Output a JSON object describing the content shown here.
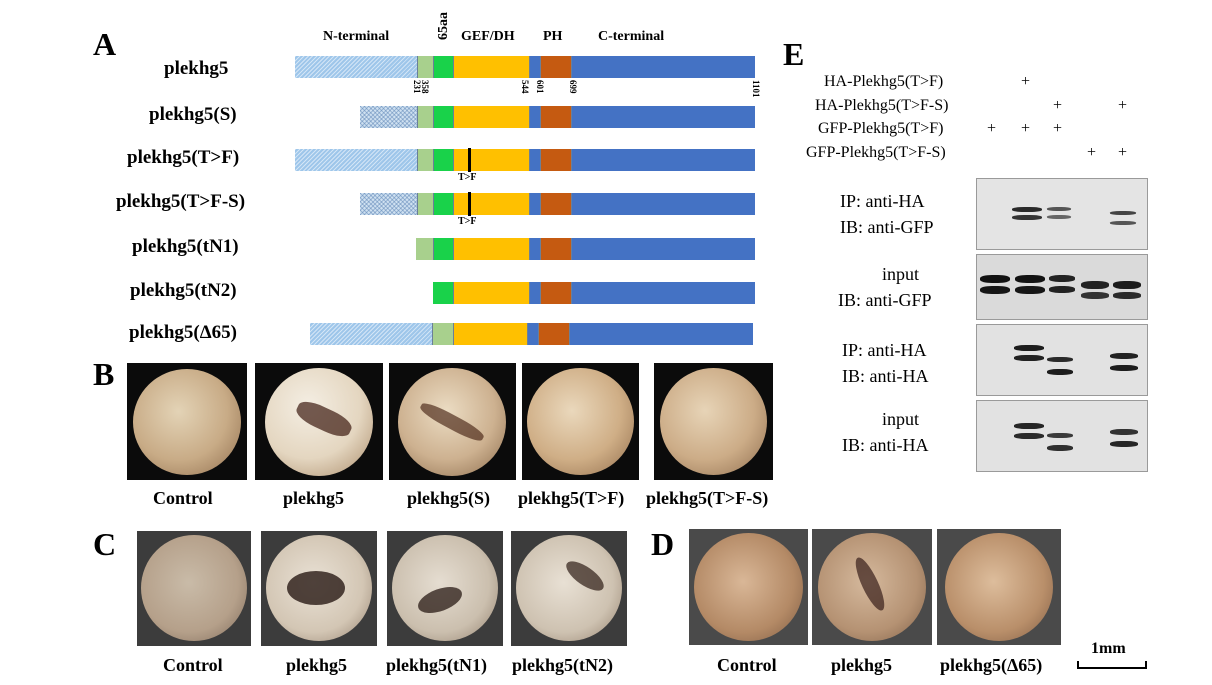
{
  "panels": {
    "A": "A",
    "B": "B",
    "C": "C",
    "D": "D",
    "E": "E"
  },
  "panel_a": {
    "domain_headers": {
      "n_terminal": "N-terminal",
      "aa65": "65aa",
      "gef_dh": "GEF/DH",
      "ph": "PH",
      "c_terminal": "C-terminal"
    },
    "positions": [
      "231",
      "358",
      "544",
      "601",
      "699",
      "1101"
    ],
    "mutation_label": "T>F",
    "constructs": [
      "plekhg5",
      "plekhg5(S)",
      "plekhg5(T>F)",
      "plekhg5(T>F-S)",
      "plekhg5(tN1)",
      "plekhg5(tN2)",
      "plekhg5(Δ65)"
    ]
  },
  "panel_b": {
    "labels": [
      "Control",
      "plekhg5",
      "plekhg5(S)",
      "plekhg5(T>F)",
      "plekhg5(T>F-S)"
    ]
  },
  "panel_c": {
    "labels": [
      "Control",
      "plekhg5",
      "plekhg5(tN1)",
      "plekhg5(tN2)"
    ]
  },
  "panel_d": {
    "labels": [
      "Control",
      "plekhg5",
      "plekhg5(Δ65)"
    ]
  },
  "scale_bar": "1mm",
  "panel_e": {
    "conditions": [
      "HA-Plekhg5(T>F)",
      "HA-Plekhg5(T>F-S)",
      "GFP-Plekhg5(T>F)",
      "GFP-Plekhg5(T>F-S)"
    ],
    "plus": "+",
    "blots": [
      {
        "line1": "IP: anti-HA",
        "line2": "IB: anti-GFP"
      },
      {
        "line1": "input",
        "line2": "IB: anti-GFP"
      },
      {
        "line1": "IP: anti-HA",
        "line2": "IB: anti-HA"
      },
      {
        "line1": "input",
        "line2": "IB: anti-HA"
      }
    ]
  }
}
